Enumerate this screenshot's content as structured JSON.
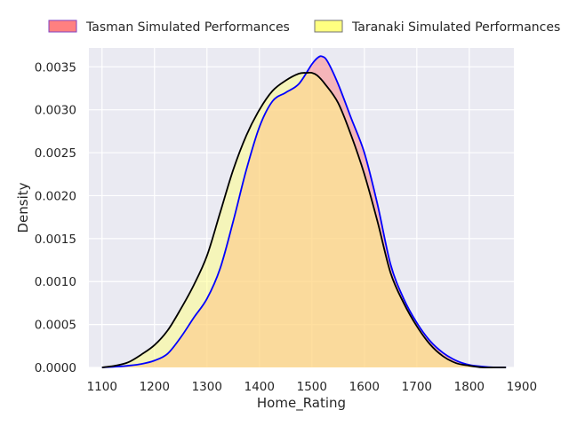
{
  "chart_data": {
    "type": "area",
    "title": "",
    "xlabel": "Home_Rating",
    "ylabel": "Density",
    "xlim": [
      1075,
      1885
    ],
    "ylim": [
      0,
      0.00372
    ],
    "xticks": [
      1100,
      1200,
      1300,
      1400,
      1500,
      1600,
      1700,
      1800,
      1900
    ],
    "xtick_labels": [
      "1100",
      "1200",
      "1300",
      "1400",
      "1500",
      "1600",
      "1700",
      "1800",
      "1900"
    ],
    "yticks": [
      0,
      0.0005,
      0.001,
      0.0015,
      0.002,
      0.0025,
      0.003,
      0.0035
    ],
    "ytick_labels": [
      "0.0000",
      "0.0005",
      "0.0010",
      "0.0015",
      "0.0020",
      "0.0025",
      "0.0030",
      "0.0035"
    ],
    "grid": true,
    "legend_position": "top",
    "series": [
      {
        "name": "Tasman Simulated Performances",
        "fill_color": "#ff8080",
        "line_color": "#0000ff",
        "legend_edge_color": "#8040c0",
        "x": [
          1100,
          1130,
          1150,
          1175,
          1200,
          1225,
          1250,
          1275,
          1300,
          1325,
          1350,
          1375,
          1400,
          1425,
          1450,
          1475,
          1500,
          1512,
          1520,
          1530,
          1550,
          1575,
          1600,
          1625,
          1650,
          1675,
          1700,
          1725,
          1750,
          1775,
          1800,
          1825,
          1850,
          1870
        ],
        "y": [
          0.0,
          1e-05,
          2e-05,
          4e-05,
          8e-05,
          0.00016,
          0.00035,
          0.00058,
          0.0008,
          0.00115,
          0.0017,
          0.0023,
          0.0028,
          0.0031,
          0.0032,
          0.0033,
          0.00353,
          0.00361,
          0.00362,
          0.00356,
          0.0033,
          0.0029,
          0.0025,
          0.0019,
          0.0012,
          0.0008,
          0.00052,
          0.00031,
          0.00017,
          8e-05,
          3e-05,
          1e-05,
          0.0,
          0.0
        ]
      },
      {
        "name": "Taranaki Simulated Performances",
        "fill_color": "#ffff80",
        "line_color": "#000000",
        "legend_edge_color": "#707070",
        "x": [
          1100,
          1125,
          1150,
          1175,
          1200,
          1225,
          1250,
          1275,
          1300,
          1325,
          1350,
          1375,
          1400,
          1425,
          1450,
          1475,
          1490,
          1500,
          1510,
          1525,
          1550,
          1575,
          1600,
          1625,
          1650,
          1675,
          1700,
          1725,
          1750,
          1775,
          1800,
          1825,
          1850,
          1870
        ],
        "y": [
          0.0,
          2e-05,
          6e-05,
          0.00015,
          0.00026,
          0.00043,
          0.00068,
          0.00096,
          0.0013,
          0.0018,
          0.0023,
          0.0027,
          0.003,
          0.00322,
          0.00334,
          0.00342,
          0.00343,
          0.00343,
          0.0034,
          0.0033,
          0.00308,
          0.0027,
          0.00225,
          0.0017,
          0.0011,
          0.00075,
          0.00048,
          0.00027,
          0.00013,
          5e-05,
          2e-05,
          0.0,
          0.0,
          0.0
        ]
      }
    ]
  }
}
